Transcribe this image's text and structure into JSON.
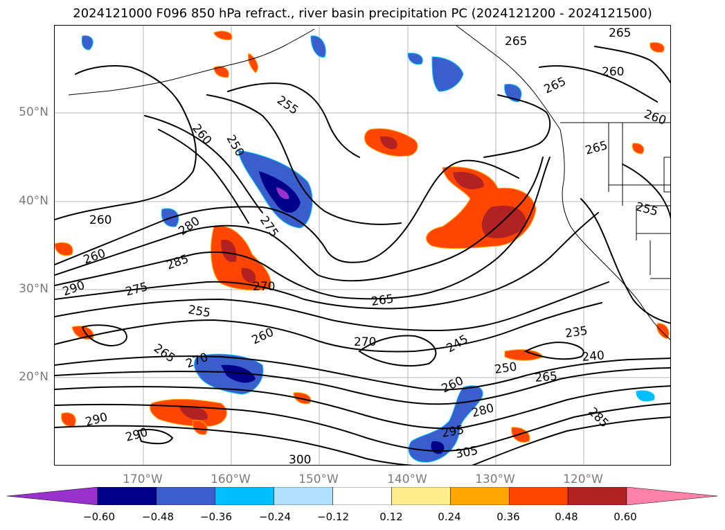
{
  "title": "2024121000 F096 850 hPa refract., river basin precipitation PC (2024121200 - 2024121500)",
  "lat_labels": [
    "50°N",
    "40°N",
    "30°N",
    "20°N"
  ],
  "lon_labels": [
    "170°W",
    "160°W",
    "150°W",
    "140°W",
    "130°W",
    "120°W"
  ],
  "contour_labels": [
    "265",
    "265",
    "260",
    "255",
    "265",
    "260",
    "250",
    "260",
    "265",
    "255",
    "260",
    "280",
    "260",
    "285",
    "270",
    "275",
    "290",
    "275",
    "255",
    "265",
    "260",
    "265",
    "270",
    "270",
    "245",
    "235",
    "250",
    "240",
    "265",
    "260",
    "280",
    "285",
    "290",
    "295",
    "290",
    "300",
    "305"
  ],
  "colorbar": {
    "colors": [
      "#9932cc",
      "#00008b",
      "#3a5fcd",
      "#00bfff",
      "#b0e2ff",
      "#ffffff",
      "#ffec8b",
      "#ffa500",
      "#ff4500",
      "#b22222",
      "#ff82ab"
    ],
    "ticks": [
      "−0.60",
      "−0.48",
      "−0.36",
      "−0.24",
      "−0.12",
      "0.12",
      "0.24",
      "0.36",
      "0.48",
      "0.60"
    ]
  }
}
